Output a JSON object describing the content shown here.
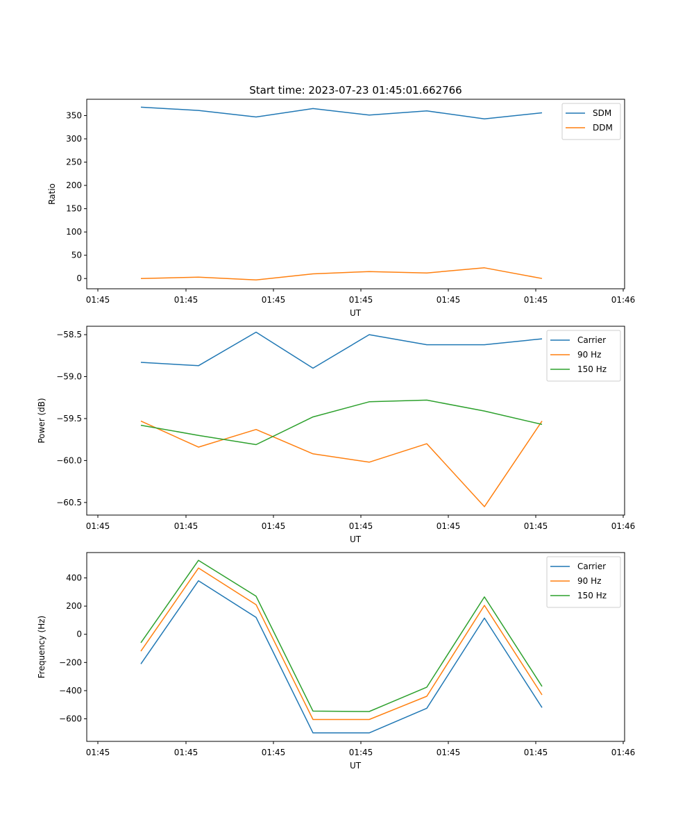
{
  "title": "Start time: 2023-07-23 01:45:01.662766",
  "colors": {
    "blue": "#1f77b4",
    "orange": "#ff7f0e",
    "green": "#2ca02c"
  },
  "chart_data": [
    {
      "type": "line",
      "ylabel": "Ratio",
      "xlabel": "UT",
      "x_tick_labels": [
        "01:45",
        "01:45",
        "01:45",
        "01:45",
        "01:45",
        "01:45",
        "01:46"
      ],
      "y_ticks": [
        0,
        50,
        100,
        150,
        200,
        250,
        300,
        350
      ],
      "y_tick_labels": [
        "0",
        "50",
        "100",
        "150",
        "200",
        "250",
        "300",
        "350"
      ],
      "ylim": [
        -22,
        385
      ],
      "legend_position": "upper-right",
      "series": [
        {
          "name": "SDM",
          "color": "#1f77b4",
          "values": [
            368,
            361,
            347,
            365,
            351,
            360,
            343,
            356
          ]
        },
        {
          "name": "DDM",
          "color": "#ff7f0e",
          "values": [
            0,
            3,
            -3,
            10,
            15,
            12,
            23,
            0
          ]
        }
      ]
    },
    {
      "type": "line",
      "ylabel": "Power (dB)",
      "xlabel": "UT",
      "x_tick_labels": [
        "01:45",
        "01:45",
        "01:45",
        "01:45",
        "01:45",
        "01:45",
        "01:46"
      ],
      "y_ticks": [
        -58.5,
        -59.0,
        -59.5,
        -60.0,
        -60.5
      ],
      "y_tick_labels": [
        "−58.5",
        "−59.0",
        "−59.5",
        "−60.0",
        "−60.5"
      ],
      "ylim": [
        -60.65,
        -58.4
      ],
      "legend_position": "upper-right",
      "series": [
        {
          "name": "Carrier",
          "color": "#1f77b4",
          "values": [
            -58.83,
            -58.87,
            -58.47,
            -58.9,
            -58.5,
            -58.62,
            -58.62,
            -58.55
          ]
        },
        {
          "name": "90 Hz",
          "color": "#ff7f0e",
          "values": [
            -59.53,
            -59.84,
            -59.63,
            -59.92,
            -60.02,
            -59.8,
            -60.55,
            -59.53
          ]
        },
        {
          "name": "150 Hz",
          "color": "#2ca02c",
          "values": [
            -59.58,
            -59.7,
            -59.81,
            -59.48,
            -59.3,
            -59.28,
            -59.41,
            -59.57
          ]
        }
      ]
    },
    {
      "type": "line",
      "ylabel": "Frequency (Hz)",
      "xlabel": "UT",
      "x_tick_labels": [
        "01:45",
        "01:45",
        "01:45",
        "01:45",
        "01:45",
        "01:45",
        "01:46"
      ],
      "y_ticks": [
        400,
        200,
        0,
        -200,
        -400,
        -600
      ],
      "y_tick_labels": [
        "400",
        "200",
        "0",
        "−200",
        "−400",
        "−600"
      ],
      "ylim": [
        -760,
        580
      ],
      "legend_position": "upper-right",
      "series": [
        {
          "name": "Carrier",
          "color": "#1f77b4",
          "values": [
            -210,
            380,
            120,
            -700,
            -700,
            -525,
            115,
            -520
          ]
        },
        {
          "name": "90 Hz",
          "color": "#ff7f0e",
          "values": [
            -120,
            470,
            210,
            -605,
            -605,
            -440,
            205,
            -430
          ]
        },
        {
          "name": "150 Hz",
          "color": "#2ca02c",
          "values": [
            -60,
            525,
            270,
            -545,
            -548,
            -375,
            265,
            -370
          ]
        }
      ]
    }
  ]
}
